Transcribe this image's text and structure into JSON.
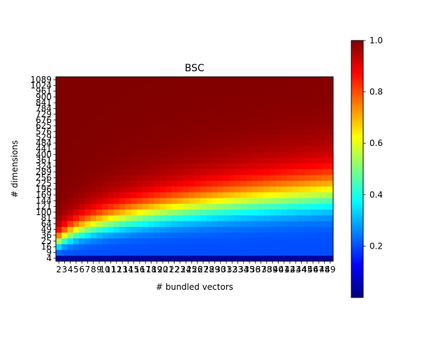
{
  "chart_data": {
    "type": "heatmap",
    "title": "BSC",
    "xlabel": "# bundled vectors",
    "ylabel": "# dimensions",
    "x_categories": [
      "2",
      "3",
      "4",
      "5",
      "6",
      "7",
      "8",
      "9",
      "10",
      "11",
      "12",
      "13",
      "14",
      "15",
      "16",
      "17",
      "18",
      "19",
      "20",
      "21",
      "22",
      "23",
      "24",
      "25",
      "26",
      "27",
      "28",
      "29",
      "30",
      "31",
      "32",
      "33",
      "34",
      "35",
      "36",
      "37",
      "38",
      "39",
      "40",
      "41",
      "42",
      "43",
      "44",
      "45",
      "46",
      "47",
      "48",
      "49"
    ],
    "y_categories": [
      "4",
      "9",
      "16",
      "25",
      "36",
      "49",
      "64",
      "81",
      "100",
      "121",
      "144",
      "169",
      "196",
      "225",
      "256",
      "289",
      "324",
      "361",
      "400",
      "441",
      "484",
      "529",
      "576",
      "625",
      "676",
      "729",
      "784",
      "841",
      "900",
      "961",
      "1024",
      "1089"
    ],
    "value_model": "approximate reconstruction of bundling accuracy; value ≈ 0.2 + 0.8*sigmoid((ln(dim) - 0.6*ln(n) - 2.9)/0.35), clipped to [0.02,1]",
    "colormap": "jet",
    "colorbar": {
      "range": [
        0.0,
        1.0
      ],
      "ticks": [
        "0.2",
        "0.4",
        "0.6",
        "0.8",
        "1.0"
      ],
      "tick_values": [
        0.2,
        0.4,
        0.6,
        0.8,
        1.0
      ]
    }
  }
}
